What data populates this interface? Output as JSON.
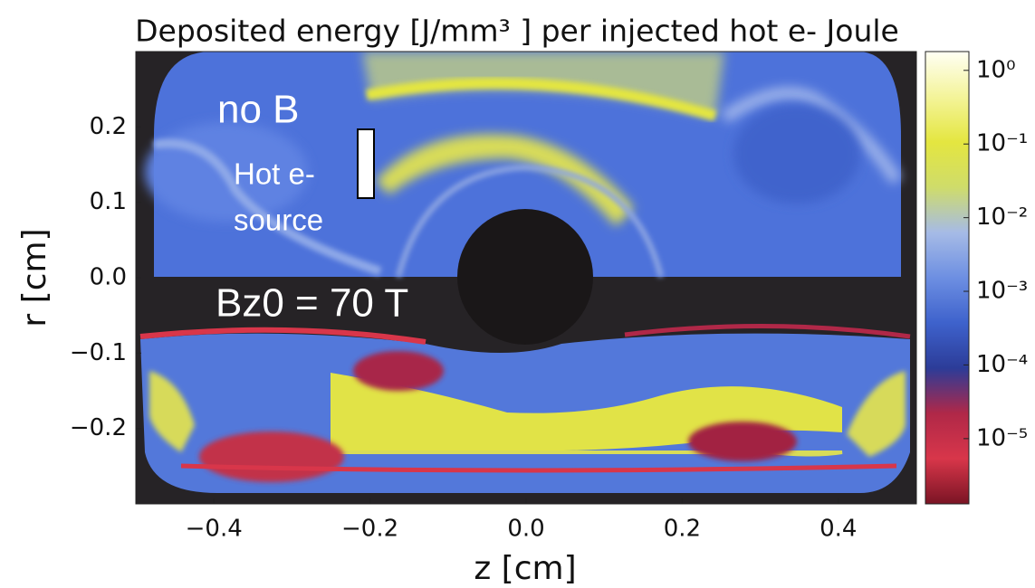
{
  "chart_data": {
    "type": "heatmap",
    "title": "Deposited energy [J/mm³ ] per injected hot e- Joule",
    "x_label": "z  [cm]",
    "y_label": "r  [cm]",
    "xlim": [
      -0.5,
      0.5
    ],
    "xticks": [
      {
        "value": -0.4,
        "label": "−0.4"
      },
      {
        "value": -0.2,
        "label": "−0.2"
      },
      {
        "value": 0,
        "label": "0.0"
      },
      0.2,
      0.4
    ],
    "ylim": [
      -0.3,
      0.3
    ],
    "yticks": [
      {
        "value": -0.2,
        "label": "−0.2"
      },
      {
        "value": -0.1,
        "label": "−0.1"
      },
      {
        "value": 0,
        "label": "0.0"
      },
      0.1,
      0.2
    ],
    "colorbar": {
      "log_scale": true,
      "clim": [
        1.3e-06,
        1.8
      ],
      "ticks": [
        {
          "value": 1,
          "label": "10⁰"
        },
        {
          "value": 0.1,
          "label": "10⁻¹"
        },
        {
          "value": 0.01,
          "label": "10⁻²"
        },
        {
          "value": 0.001,
          "label": "10⁻³"
        },
        {
          "value": 0.0001,
          "label": "10⁻⁴"
        },
        {
          "value": 1e-05,
          "label": "10⁻⁵"
        }
      ],
      "colormap": [
        "#fffff4",
        "#f4f49a",
        "#e4e640",
        "#cfdc6a",
        "#a6bbe6",
        "#6d8fe2",
        "#3e62cc",
        "#2c3c98",
        "#b02848",
        "#d8364a",
        "#7a1424"
      ]
    },
    "annotations": [
      "no B",
      "Hot e-",
      "source",
      "Bz0 = 70 T"
    ]
  }
}
